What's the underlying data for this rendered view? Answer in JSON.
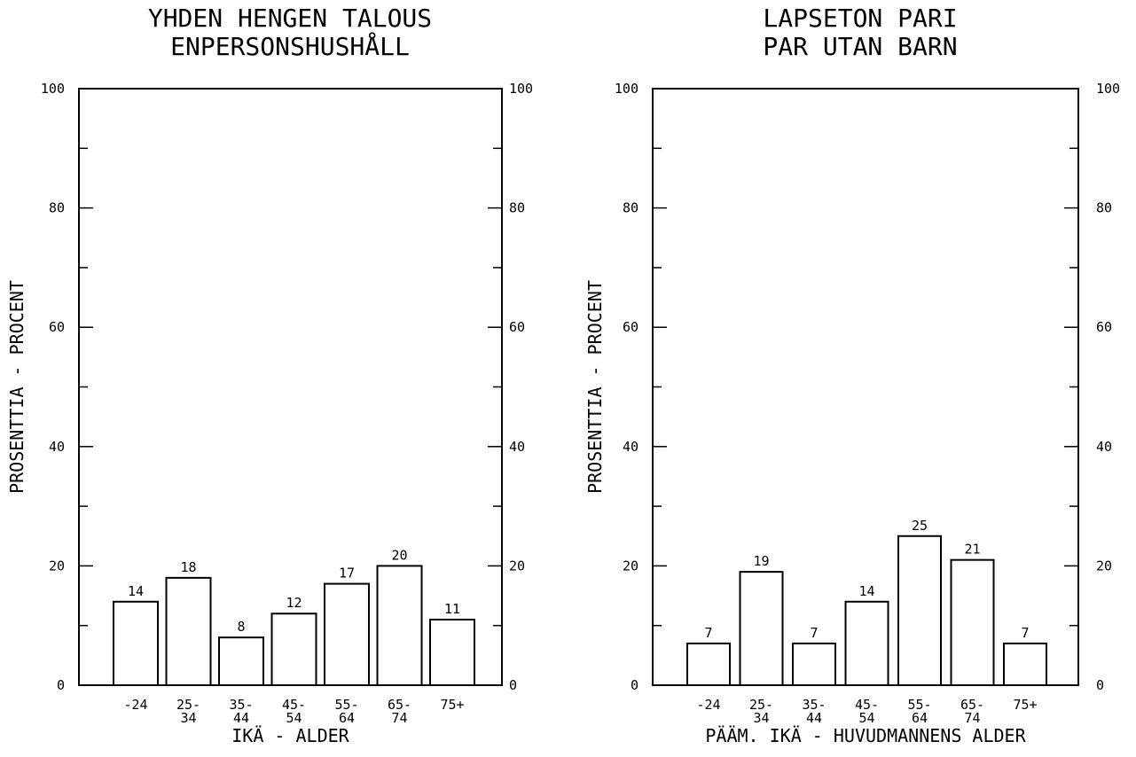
{
  "chart_data": [
    {
      "type": "bar",
      "title_lines": [
        "YHDEN HENGEN TALOUS",
        "ENPERSONSHUSHÅLL"
      ],
      "ylabel": "PROSENTTIA - PROCENT",
      "xlabel": "IKÄ - ALDER",
      "ylim": [
        0,
        100
      ],
      "yticks": [
        "0",
        "20",
        "40",
        "60",
        "80",
        "100"
      ],
      "categories": [
        [
          "-24"
        ],
        [
          "25-",
          "34"
        ],
        [
          "35-",
          "44"
        ],
        [
          "45-",
          "54"
        ],
        [
          "55-",
          "64"
        ],
        [
          "65-",
          "74"
        ],
        [
          "75+"
        ]
      ],
      "values": [
        14,
        18,
        8,
        12,
        17,
        20,
        11
      ],
      "value_labels": [
        "14",
        "18",
        "8",
        "12",
        "17",
        "20",
        "11"
      ],
      "grid": false,
      "right_axis": true
    },
    {
      "type": "bar",
      "title_lines": [
        "LAPSETON PARI",
        "PAR UTAN BARN"
      ],
      "ylabel": "PROSENTTIA - PROCENT",
      "xlabel": "PÄÄM. IKÄ - HUVUDMANNENS ALDER",
      "ylim": [
        0,
        100
      ],
      "yticks": [
        "0",
        "20",
        "40",
        "60",
        "80",
        "100"
      ],
      "categories": [
        [
          "-24"
        ],
        [
          "25-",
          "34"
        ],
        [
          "35-",
          "44"
        ],
        [
          "45-",
          "54"
        ],
        [
          "55-",
          "64"
        ],
        [
          "65-",
          "74"
        ],
        [
          "75+"
        ]
      ],
      "values": [
        7,
        19,
        7,
        14,
        25,
        21,
        7
      ],
      "value_labels": [
        "7",
        "19",
        "7",
        "14",
        "25",
        "21",
        "7"
      ],
      "grid": false,
      "right_axis": true
    }
  ]
}
